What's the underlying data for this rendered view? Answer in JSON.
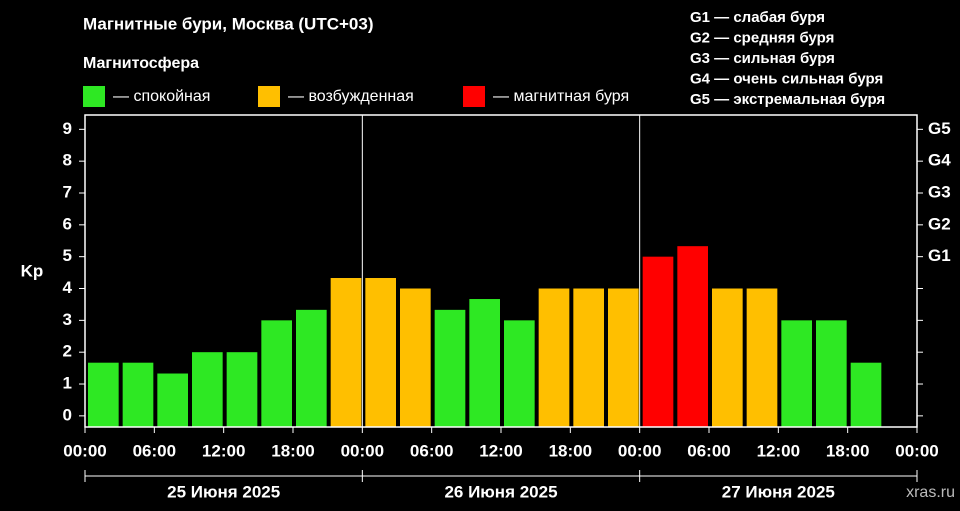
{
  "chart_data": {
    "type": "bar",
    "title": "Магнитные бури, Москва (UTC+03)",
    "legend_title": "Магнитосфера",
    "legend": [
      {
        "label": "— спокойная",
        "color": "#2ee823"
      },
      {
        "label": "— возбужденная",
        "color": "#ffbf00"
      },
      {
        "label": "— магнитная буря",
        "color": "#ff0000"
      }
    ],
    "scale_notes": [
      "G1 — слабая буря",
      "G2 — средняя буря",
      "G3 — сильная буря",
      "G4 — очень сильная буря",
      "G5 — экстремальная буря"
    ],
    "ylabel": "Kp",
    "x": [
      0,
      3,
      6,
      9,
      12,
      15,
      18,
      21,
      24,
      27,
      30,
      33,
      36,
      39,
      42,
      45,
      48,
      51,
      54,
      57,
      60,
      63,
      66,
      69
    ],
    "values": [
      1.67,
      1.67,
      1.33,
      2,
      2,
      3,
      3.33,
      4.33,
      4.33,
      4,
      3.33,
      3.67,
      3,
      4,
      4,
      4,
      5,
      5.33,
      4,
      4,
      3,
      3,
      1.67,
      null
    ],
    "colors": [
      "#2ee823",
      "#2ee823",
      "#2ee823",
      "#2ee823",
      "#2ee823",
      "#2ee823",
      "#2ee823",
      "#ffbf00",
      "#ffbf00",
      "#ffbf00",
      "#2ee823",
      "#2ee823",
      "#2ee823",
      "#ffbf00",
      "#ffbf00",
      "#ffbf00",
      "#ff0000",
      "#ff0000",
      "#ffbf00",
      "#ffbf00",
      "#2ee823",
      "#2ee823",
      "#2ee823",
      null
    ],
    "xlim": [
      0,
      72
    ],
    "xticks": [
      {
        "value": 0,
        "label": "00:00"
      },
      {
        "value": 6,
        "label": "06:00"
      },
      {
        "value": 12,
        "label": "12:00"
      },
      {
        "value": 18,
        "label": "18:00"
      },
      {
        "value": 24,
        "label": "00:00"
      },
      {
        "value": 30,
        "label": "06:00"
      },
      {
        "value": 36,
        "label": "12:00"
      },
      {
        "value": 42,
        "label": "18:00"
      },
      {
        "value": 48,
        "label": "00:00"
      },
      {
        "value": 54,
        "label": "06:00"
      },
      {
        "value": 60,
        "label": "12:00"
      },
      {
        "value": 66,
        "label": "18:00"
      },
      {
        "value": 72,
        "label": "00:00"
      }
    ],
    "day_separators": [
      24,
      48
    ],
    "days": [
      "25 Июня 2025",
      "26 Июня 2025",
      "27 Июня 2025"
    ],
    "ylim": [
      -0.35,
      9.45
    ],
    "yticks": [
      0,
      1,
      2,
      3,
      4,
      5,
      6,
      7,
      8,
      9
    ],
    "y2lim": [
      -0.35,
      9.45
    ],
    "y2ticks": [
      {
        "value": 5,
        "label": "G1"
      },
      {
        "value": 6,
        "label": "G2"
      },
      {
        "value": 7,
        "label": "G3"
      },
      {
        "value": 8,
        "label": "G4"
      },
      {
        "value": 9,
        "label": "G5"
      }
    ],
    "watermark": "xras.ru"
  }
}
